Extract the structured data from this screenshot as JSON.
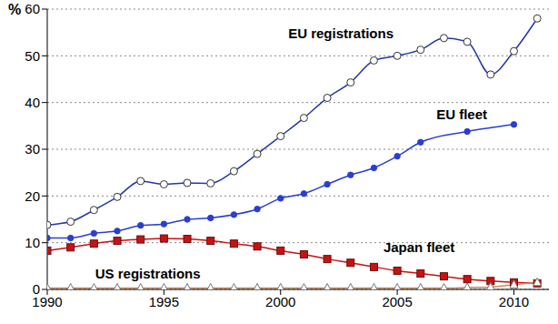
{
  "chart_data": {
    "type": "line",
    "y_label": "%",
    "x": [
      1990,
      1991,
      1992,
      1993,
      1994,
      1995,
      1996,
      1997,
      1998,
      1999,
      2000,
      2001,
      2002,
      2003,
      2004,
      2005,
      2006,
      2007,
      2008,
      2009,
      2010,
      2011
    ],
    "xlim": [
      1990,
      2011.5
    ],
    "xticks": [
      1990,
      1995,
      2000,
      2005,
      2010
    ],
    "ylim": [
      0,
      60
    ],
    "yticks": [
      0,
      10,
      20,
      30,
      40,
      50,
      60
    ],
    "grid": true,
    "series": [
      {
        "name": "EU registrations",
        "color": "#2438a8",
        "marker": "circle_open",
        "values": [
          13.8,
          14.5,
          17,
          19.8,
          23.2,
          22.5,
          22.8,
          22.7,
          25.3,
          29,
          32.8,
          36.7,
          41,
          44.3,
          49,
          50,
          51.3,
          53.8,
          53,
          46,
          51,
          58
        ]
      },
      {
        "name": "EU fleet",
        "color": "#2a3fd0",
        "marker": "circle",
        "values": [
          11,
          11,
          12,
          12.5,
          13.7,
          14,
          15,
          15.3,
          16,
          17.2,
          19.5,
          20.5,
          22.5,
          24.5,
          26,
          28.5,
          31.5,
          null,
          33.8,
          null,
          35.3,
          null
        ]
      },
      {
        "name": "Japan fleet",
        "color": "#cc1010",
        "marker": "square",
        "values": [
          8.3,
          9,
          9.8,
          10.4,
          10.7,
          10.9,
          10.8,
          10.4,
          9.8,
          9.2,
          8.3,
          7.5,
          6.5,
          5.7,
          4.8,
          4,
          3.4,
          2.8,
          2.2,
          1.8,
          1.5,
          1.3
        ]
      },
      {
        "name": "US registrations",
        "color": "#c88a5a",
        "marker": "triangle",
        "values": [
          0.3,
          0.3,
          0.3,
          0.3,
          0.3,
          0.3,
          0.3,
          0.3,
          0.3,
          0.3,
          0.3,
          0.3,
          0.3,
          0.3,
          0.3,
          0.3,
          0.3,
          0.3,
          0.4,
          0.5,
          1,
          1.5
        ]
      }
    ]
  }
}
